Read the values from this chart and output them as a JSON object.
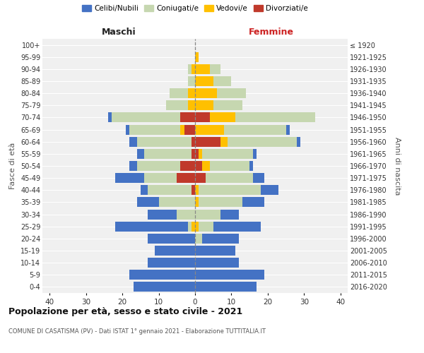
{
  "age_groups": [
    "0-4",
    "5-9",
    "10-14",
    "15-19",
    "20-24",
    "25-29",
    "30-34",
    "35-39",
    "40-44",
    "45-49",
    "50-54",
    "55-59",
    "60-64",
    "65-69",
    "70-74",
    "75-79",
    "80-84",
    "85-89",
    "90-94",
    "95-99",
    "100+"
  ],
  "birth_years": [
    "2016-2020",
    "2011-2015",
    "2006-2010",
    "2001-2005",
    "1996-2000",
    "1991-1995",
    "1986-1990",
    "1981-1985",
    "1976-1980",
    "1971-1975",
    "1966-1970",
    "1961-1965",
    "1956-1960",
    "1951-1955",
    "1946-1950",
    "1941-1945",
    "1936-1940",
    "1931-1935",
    "1926-1930",
    "1921-1925",
    "≤ 1920"
  ],
  "male": {
    "celibi": [
      17,
      18,
      13,
      11,
      13,
      20,
      8,
      6,
      2,
      8,
      2,
      2,
      2,
      1,
      1,
      0,
      0,
      0,
      0,
      0,
      0
    ],
    "coniugati": [
      0,
      0,
      0,
      0,
      0,
      1,
      5,
      10,
      12,
      9,
      12,
      13,
      15,
      14,
      19,
      6,
      5,
      2,
      1,
      0,
      0
    ],
    "vedovi": [
      0,
      0,
      0,
      0,
      0,
      1,
      0,
      0,
      0,
      0,
      0,
      0,
      0,
      1,
      0,
      2,
      2,
      0,
      1,
      0,
      0
    ],
    "divorziati": [
      0,
      0,
      0,
      0,
      0,
      0,
      0,
      0,
      1,
      5,
      4,
      1,
      1,
      3,
      4,
      0,
      0,
      0,
      0,
      0,
      0
    ]
  },
  "female": {
    "nubili": [
      17,
      19,
      12,
      11,
      10,
      13,
      5,
      6,
      5,
      3,
      1,
      1,
      1,
      1,
      0,
      0,
      0,
      0,
      0,
      0,
      0
    ],
    "coniugate": [
      0,
      0,
      0,
      0,
      2,
      4,
      7,
      12,
      17,
      13,
      11,
      14,
      19,
      17,
      22,
      8,
      8,
      5,
      3,
      0,
      0
    ],
    "vedove": [
      0,
      0,
      0,
      0,
      0,
      1,
      0,
      1,
      1,
      0,
      2,
      1,
      2,
      8,
      7,
      5,
      6,
      5,
      4,
      1,
      0
    ],
    "divorziate": [
      0,
      0,
      0,
      0,
      0,
      0,
      0,
      0,
      0,
      3,
      2,
      1,
      7,
      0,
      4,
      0,
      0,
      0,
      0,
      0,
      0
    ]
  },
  "color_celibi": "#4472c4",
  "color_coniugati": "#c6d7b0",
  "color_vedovi": "#ffc000",
  "color_divorziati": "#c0392b",
  "xlim": 42,
  "title": "Popolazione per età, sesso e stato civile - 2021",
  "subtitle": "COMUNE DI CASATISMA (PV) - Dati ISTAT 1° gennaio 2021 - Elaborazione TUTTITALIA.IT",
  "ylabel_left": "Fasce di età",
  "ylabel_right": "Anni di nascita",
  "xlabel_maschi": "Maschi",
  "xlabel_femmine": "Femmine",
  "legend_labels": [
    "Celibi/Nubili",
    "Coniugati/e",
    "Vedovi/e",
    "Divorziati/e"
  ],
  "bg_color": "#f0f0f0"
}
